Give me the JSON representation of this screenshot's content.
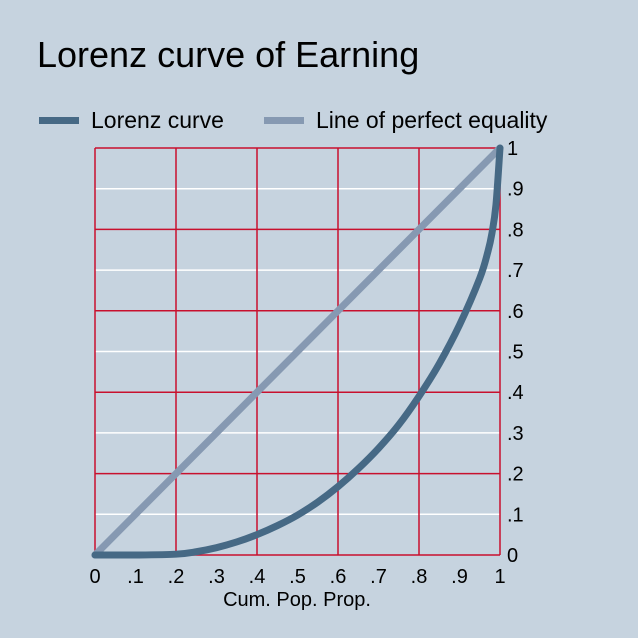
{
  "chart_data": {
    "type": "line",
    "title": "Lorenz curve of Earning",
    "xlabel": "Cum. Pop. Prop.",
    "ylabel": "",
    "xlim": [
      0,
      1
    ],
    "ylim": [
      0,
      1
    ],
    "x_tick_labels": [
      "0",
      ".1",
      ".2",
      ".3",
      ".4",
      ".5",
      ".6",
      ".7",
      ".8",
      ".9",
      "1"
    ],
    "y_tick_labels": [
      "0",
      ".1",
      ".2",
      ".3",
      ".4",
      ".5",
      ".6",
      ".7",
      ".8",
      ".9",
      "1"
    ],
    "y_axis_side": "right",
    "legend_position": "top",
    "grid": true,
    "series": [
      {
        "name": "Lorenz curve",
        "color": "#466985",
        "x": [
          0,
          0.1,
          0.2,
          0.25,
          0.3,
          0.35,
          0.4,
          0.45,
          0.5,
          0.55,
          0.6,
          0.65,
          0.7,
          0.75,
          0.8,
          0.85,
          0.9,
          0.95,
          0.97,
          0.98,
          0.99,
          1.0
        ],
        "y": [
          0,
          0,
          0.002,
          0.008,
          0.018,
          0.032,
          0.05,
          0.072,
          0.098,
          0.13,
          0.168,
          0.212,
          0.262,
          0.32,
          0.39,
          0.47,
          0.565,
          0.68,
          0.745,
          0.79,
          0.86,
          1.0
        ]
      },
      {
        "name": "Line of perfect equality",
        "color": "#8699b2",
        "x": [
          0,
          1
        ],
        "y": [
          0,
          1
        ]
      }
    ]
  },
  "colors": {
    "background": "#c6d3df",
    "plot_background": "#c6d3df",
    "grid_major": "#c8102e",
    "grid_minor": "#ffffff"
  }
}
